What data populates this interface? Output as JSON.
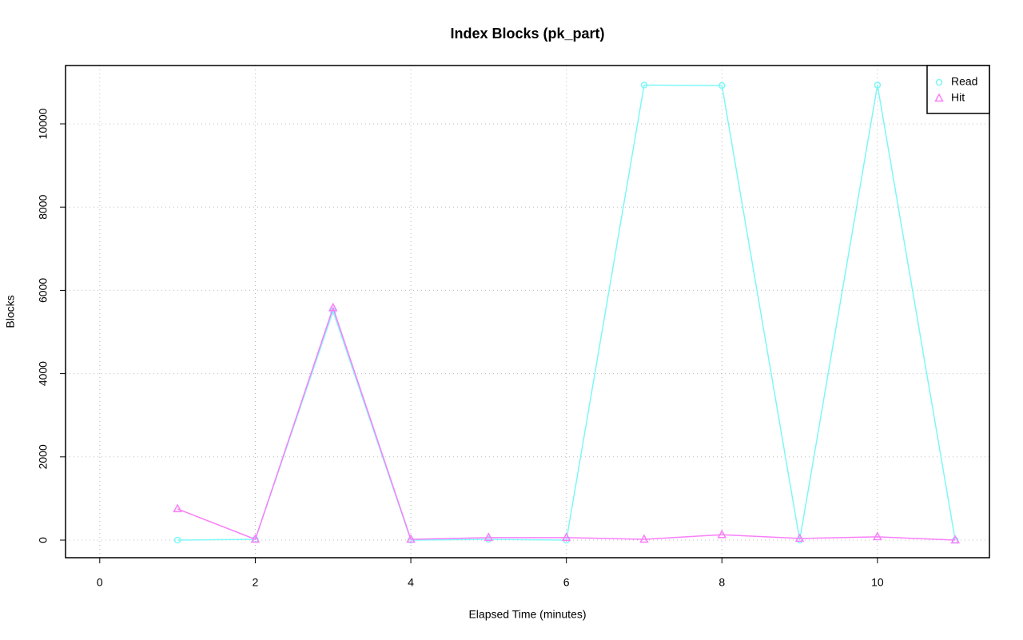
{
  "chart_data": {
    "type": "line",
    "title": "Index Blocks (pk_part)",
    "x_label": "Elapsed Time (minutes)",
    "y_label": "Blocks",
    "x": [
      1,
      2,
      3,
      4,
      5,
      6,
      7,
      8,
      9,
      10,
      11
    ],
    "series": [
      {
        "name": "Read",
        "color": "#7ff7f7",
        "marker": "circle",
        "values": [
          0,
          20,
          5500,
          0,
          20,
          0,
          10930,
          10920,
          0,
          10930,
          0
        ]
      },
      {
        "name": "Hit",
        "color": "#f97ff9",
        "marker": "triangle",
        "values": [
          750,
          20,
          5580,
          20,
          60,
          60,
          20,
          130,
          40,
          80,
          0
        ]
      }
    ],
    "xlim": [
      -0.44,
      11.44
    ],
    "xticks": [
      0,
      2,
      4,
      6,
      8,
      10
    ],
    "ylim": [
      -422,
      11401
    ],
    "yticks": [
      0,
      2000,
      4000,
      6000,
      8000,
      10000
    ],
    "grid": true,
    "legend": "top-right"
  }
}
